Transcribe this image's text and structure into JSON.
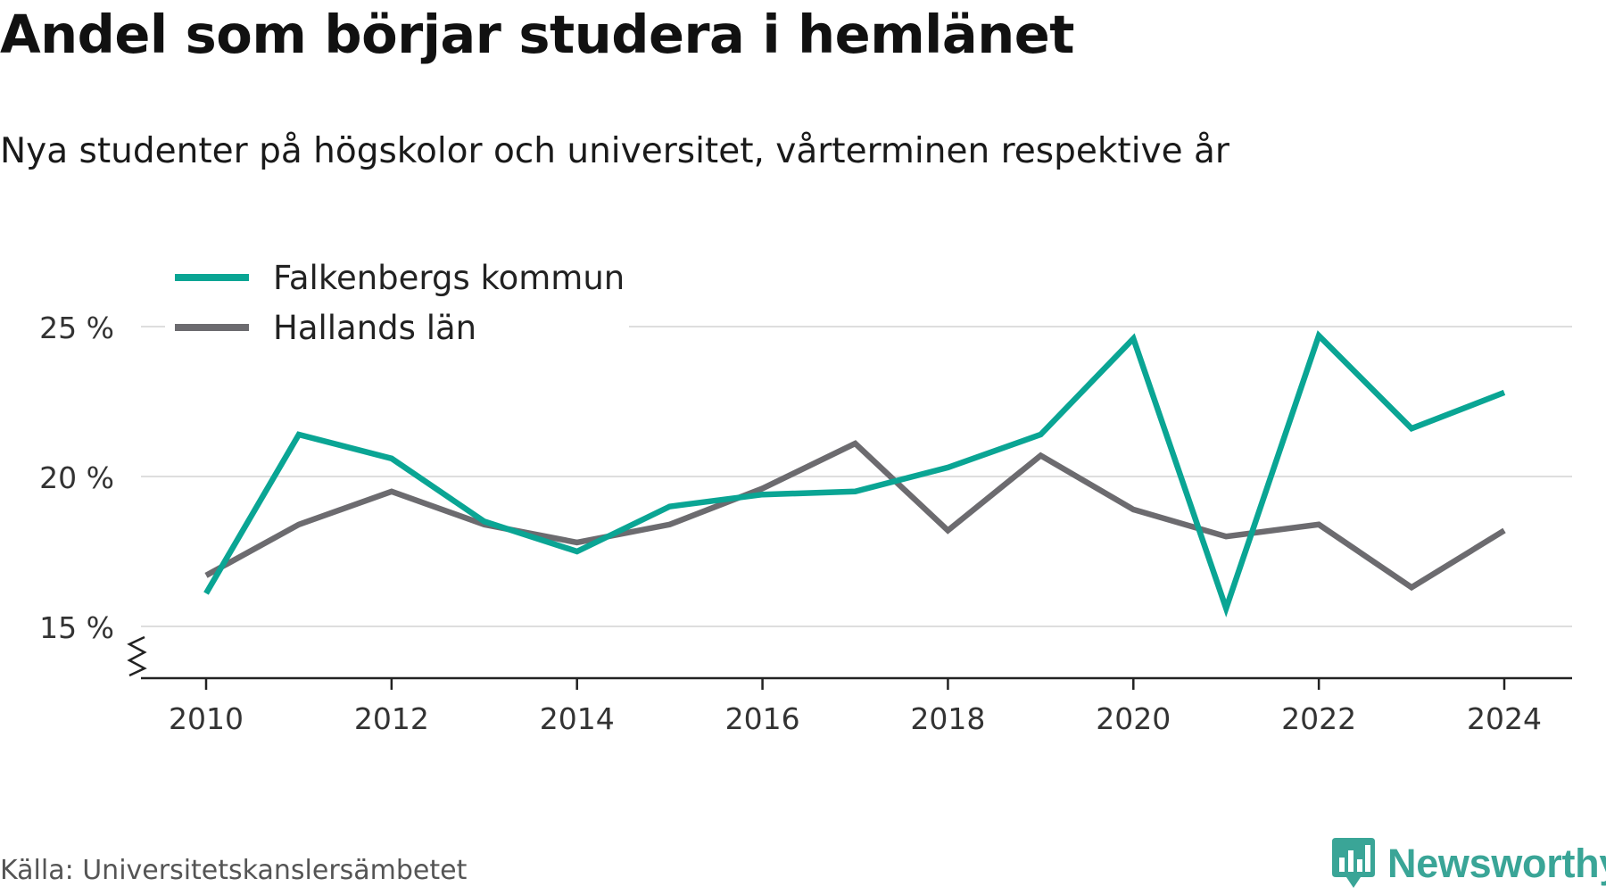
{
  "title": "Andel som börjar studera i hemlänet",
  "subtitle": "Nya studenter på högskolor och universitet, vårterminen respektive år",
  "source": "Källa: Universitetskanslersämbetet",
  "brand": {
    "name": "Newsworthy",
    "icon": "newsworthy-logo-icon",
    "color": "#3aa597"
  },
  "chart_data": {
    "type": "line",
    "x": [
      2010,
      2011,
      2012,
      2013,
      2014,
      2015,
      2016,
      2017,
      2018,
      2019,
      2020,
      2021,
      2022,
      2023,
      2024
    ],
    "x_tick_labels": [
      "2010",
      "2012",
      "2014",
      "2016",
      "2018",
      "2020",
      "2022",
      "2024"
    ],
    "y_ticks": [
      15,
      20,
      25
    ],
    "y_tick_labels": [
      "15 %",
      "20 %",
      "25 %"
    ],
    "ylim": [
      13.3,
      25.5
    ],
    "y_axis_broken": true,
    "grid": true,
    "legend_position": "top-left",
    "series": [
      {
        "name": "Falkenbergs kommun",
        "color": "#0aa594",
        "values": [
          16.1,
          21.4,
          20.6,
          18.5,
          17.5,
          19.0,
          19.4,
          19.5,
          20.3,
          21.4,
          24.6,
          15.6,
          24.7,
          21.6,
          22.8
        ]
      },
      {
        "name": "Hallands län",
        "color": "#6c6b6f",
        "values": [
          16.7,
          18.4,
          19.5,
          18.4,
          17.8,
          18.4,
          19.6,
          21.1,
          18.2,
          20.7,
          18.9,
          18.0,
          18.4,
          16.3,
          18.2
        ]
      }
    ]
  }
}
